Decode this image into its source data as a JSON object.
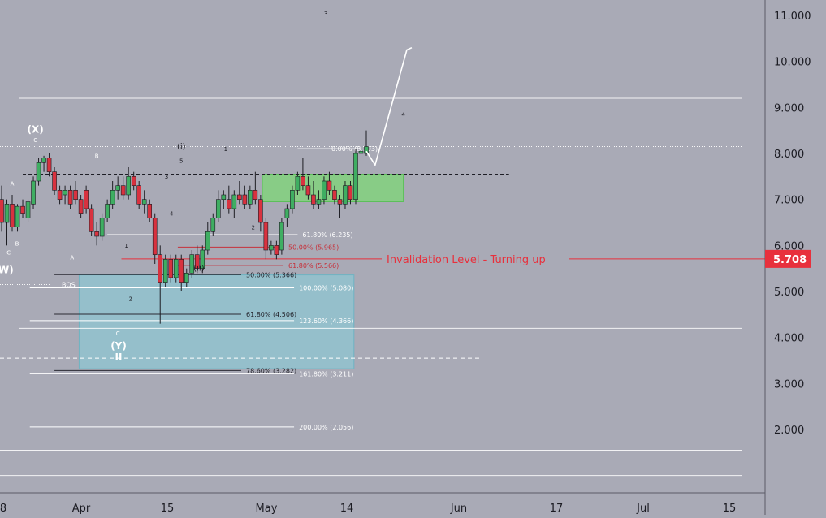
{
  "colors": {
    "background": "#a9aab6",
    "up_candle": "#3fae62",
    "down_candle": "#d8323f",
    "invalidation": "#e8303c",
    "demand_zone": "#7fd47a",
    "fib_box": "#8fc6d2",
    "axis_text": "#1b1b22",
    "label_white": "#f4f4f8"
  },
  "chart_data": {
    "type": "candlestick",
    "title": "",
    "xlabel": "",
    "ylabel": "",
    "ylim": [
      1.0,
      11.4
    ],
    "grid": false,
    "y_ticks": [
      "2.000",
      "3.000",
      "4.000",
      "5.000",
      "6.000",
      "7.000",
      "8.000",
      "9.000",
      "10.000",
      "11.000"
    ],
    "x_ticks": [
      {
        "label": "8",
        "x": 0
      },
      {
        "label": "Apr",
        "x": 8
      },
      {
        "label": "15",
        "x": 16
      },
      {
        "label": "May",
        "x": 24.5
      },
      {
        "label": "14",
        "x": 32
      },
      {
        "label": "Jun",
        "x": 42
      },
      {
        "label": "17",
        "x": 51
      },
      {
        "label": "Jul",
        "x": 60
      },
      {
        "label": "15",
        "x": 68
      }
    ],
    "price_label": {
      "text": "5.708",
      "value": 5.708
    },
    "invalidation": {
      "text": "Invalidation Level - Turning up",
      "value": 5.708,
      "x_start": 17,
      "x_end": 70
    },
    "candles": [
      {
        "t": 0,
        "o": 7.0,
        "h": 7.3,
        "l": 6.3,
        "c": 6.5
      },
      {
        "t": 0.75,
        "o": 6.5,
        "h": 7.0,
        "l": 6.0,
        "c": 6.9
      },
      {
        "t": 1.5,
        "o": 6.9,
        "h": 7.1,
        "l": 6.3,
        "c": 6.4
      },
      {
        "t": 2.25,
        "o": 6.4,
        "h": 6.9,
        "l": 6.3,
        "c": 6.85
      },
      {
        "t": 3,
        "o": 6.85,
        "h": 7.0,
        "l": 6.6,
        "c": 6.7
      },
      {
        "t": 3.75,
        "o": 6.6,
        "h": 7.0,
        "l": 6.5,
        "c": 6.95
      },
      {
        "t": 4.5,
        "o": 6.9,
        "h": 7.5,
        "l": 6.8,
        "c": 7.4
      },
      {
        "t": 5.25,
        "o": 7.4,
        "h": 7.9,
        "l": 7.3,
        "c": 7.8
      },
      {
        "t": 6,
        "o": 7.8,
        "h": 7.95,
        "l": 7.6,
        "c": 7.9
      },
      {
        "t": 6.75,
        "o": 7.9,
        "h": 8.0,
        "l": 7.5,
        "c": 7.6
      },
      {
        "t": 7.5,
        "o": 7.6,
        "h": 7.7,
        "l": 7.1,
        "c": 7.2
      },
      {
        "t": 8.25,
        "o": 7.2,
        "h": 7.3,
        "l": 6.9,
        "c": 7.0
      },
      {
        "t": 9,
        "o": 7.1,
        "h": 7.3,
        "l": 6.9,
        "c": 7.2
      },
      {
        "t": 9.75,
        "o": 7.2,
        "h": 7.3,
        "l": 6.8,
        "c": 6.9
      },
      {
        "t": 10.5,
        "o": 7.2,
        "h": 7.4,
        "l": 6.9,
        "c": 7.0
      },
      {
        "t": 11.25,
        "o": 7.0,
        "h": 7.1,
        "l": 6.6,
        "c": 6.7
      },
      {
        "t": 12,
        "o": 7.2,
        "h": 7.3,
        "l": 6.7,
        "c": 6.8
      },
      {
        "t": 12.75,
        "o": 6.8,
        "h": 6.9,
        "l": 6.2,
        "c": 6.3
      },
      {
        "t": 13.5,
        "o": 6.3,
        "h": 6.5,
        "l": 6.0,
        "c": 6.2
      },
      {
        "t": 14.25,
        "o": 6.2,
        "h": 6.7,
        "l": 6.1,
        "c": 6.6
      },
      {
        "t": 15,
        "o": 6.6,
        "h": 7.0,
        "l": 6.5,
        "c": 6.9
      },
      {
        "t": 15.75,
        "o": 6.9,
        "h": 7.4,
        "l": 6.8,
        "c": 7.2
      },
      {
        "t": 16.5,
        "o": 7.2,
        "h": 7.5,
        "l": 7.0,
        "c": 7.3
      },
      {
        "t": 17.25,
        "o": 7.3,
        "h": 7.5,
        "l": 7.0,
        "c": 7.1
      },
      {
        "t": 18,
        "o": 7.1,
        "h": 7.7,
        "l": 7.0,
        "c": 7.5
      },
      {
        "t": 18.75,
        "o": 7.5,
        "h": 7.6,
        "l": 7.2,
        "c": 7.3
      },
      {
        "t": 19.5,
        "o": 7.3,
        "h": 7.4,
        "l": 6.8,
        "c": 6.9
      },
      {
        "t": 20.25,
        "o": 6.9,
        "h": 7.2,
        "l": 6.7,
        "c": 7.0
      },
      {
        "t": 21,
        "o": 6.9,
        "h": 7.0,
        "l": 6.5,
        "c": 6.6
      },
      {
        "t": 21.75,
        "o": 6.6,
        "h": 6.7,
        "l": 5.6,
        "c": 5.8
      },
      {
        "t": 22.5,
        "o": 5.8,
        "h": 6.0,
        "l": 4.3,
        "c": 5.2
      },
      {
        "t": 23.25,
        "o": 5.2,
        "h": 5.8,
        "l": 5.1,
        "c": 5.7
      },
      {
        "t": 24,
        "o": 5.7,
        "h": 5.8,
        "l": 5.2,
        "c": 5.3
      },
      {
        "t": 24.75,
        "o": 5.3,
        "h": 5.8,
        "l": 5.2,
        "c": 5.7
      },
      {
        "t": 25.5,
        "o": 5.7,
        "h": 5.8,
        "l": 5.0,
        "c": 5.2
      },
      {
        "t": 26.25,
        "o": 5.2,
        "h": 5.5,
        "l": 5.1,
        "c": 5.4
      },
      {
        "t": 27,
        "o": 5.4,
        "h": 5.9,
        "l": 5.3,
        "c": 5.8
      },
      {
        "t": 27.75,
        "o": 5.8,
        "h": 6.0,
        "l": 5.4,
        "c": 5.5
      },
      {
        "t": 28.5,
        "o": 5.5,
        "h": 6.0,
        "l": 5.4,
        "c": 5.9
      },
      {
        "t": 29.25,
        "o": 5.9,
        "h": 6.5,
        "l": 5.8,
        "c": 6.3
      },
      {
        "t": 30,
        "o": 6.3,
        "h": 6.7,
        "l": 6.2,
        "c": 6.6
      },
      {
        "t": 30.75,
        "o": 6.6,
        "h": 7.2,
        "l": 6.5,
        "c": 7.0
      },
      {
        "t": 31.5,
        "o": 7.0,
        "h": 7.2,
        "l": 6.8,
        "c": 7.1
      },
      {
        "t": 32.25,
        "o": 7.0,
        "h": 7.3,
        "l": 6.7,
        "c": 6.8
      },
      {
        "t": 33,
        "o": 6.8,
        "h": 7.2,
        "l": 6.6,
        "c": 7.1
      },
      {
        "t": 33.75,
        "o": 7.1,
        "h": 7.4,
        "l": 6.9,
        "c": 7.0
      },
      {
        "t": 34.5,
        "o": 7.1,
        "h": 7.3,
        "l": 6.8,
        "c": 6.9
      },
      {
        "t": 35.25,
        "o": 6.9,
        "h": 7.3,
        "l": 6.8,
        "c": 7.2
      },
      {
        "t": 36,
        "o": 7.2,
        "h": 7.6,
        "l": 6.9,
        "c": 7.0
      },
      {
        "t": 36.75,
        "o": 7.0,
        "h": 7.1,
        "l": 6.3,
        "c": 6.5
      },
      {
        "t": 37.5,
        "o": 6.5,
        "h": 6.6,
        "l": 5.7,
        "c": 5.9
      },
      {
        "t": 38.25,
        "o": 5.9,
        "h": 6.1,
        "l": 5.8,
        "c": 6.0
      },
      {
        "t": 39,
        "o": 6.0,
        "h": 6.1,
        "l": 5.7,
        "c": 5.8
      },
      {
        "t": 39.75,
        "o": 5.9,
        "h": 6.6,
        "l": 5.8,
        "c": 6.5
      },
      {
        "t": 40.5,
        "o": 6.6,
        "h": 6.9,
        "l": 6.4,
        "c": 6.8
      },
      {
        "t": 41.25,
        "o": 6.8,
        "h": 7.3,
        "l": 6.7,
        "c": 7.2
      },
      {
        "t": 42,
        "o": 7.2,
        "h": 7.6,
        "l": 7.1,
        "c": 7.5
      },
      {
        "t": 42.75,
        "o": 7.5,
        "h": 7.9,
        "l": 7.2,
        "c": 7.3
      },
      {
        "t": 43.5,
        "o": 7.3,
        "h": 7.5,
        "l": 7.0,
        "c": 7.1
      },
      {
        "t": 44.25,
        "o": 7.1,
        "h": 7.4,
        "l": 6.8,
        "c": 6.9
      },
      {
        "t": 45,
        "o": 6.9,
        "h": 7.2,
        "l": 6.8,
        "c": 7.0
      },
      {
        "t": 45.75,
        "o": 7.0,
        "h": 7.5,
        "l": 6.9,
        "c": 7.4
      },
      {
        "t": 46.5,
        "o": 7.4,
        "h": 7.6,
        "l": 7.1,
        "c": 7.2
      },
      {
        "t": 47.25,
        "o": 7.2,
        "h": 7.3,
        "l": 6.9,
        "c": 7.0
      },
      {
        "t": 48,
        "o": 7.0,
        "h": 7.1,
        "l": 6.6,
        "c": 6.9
      },
      {
        "t": 48.75,
        "o": 6.9,
        "h": 7.4,
        "l": 6.8,
        "c": 7.3
      },
      {
        "t": 49.5,
        "o": 7.3,
        "h": 7.4,
        "l": 6.9,
        "c": 7.0
      },
      {
        "t": 50.25,
        "o": 7.0,
        "h": 8.1,
        "l": 6.9,
        "c": 8.0
      },
      {
        "t": 51,
        "o": 8.0,
        "h": 8.3,
        "l": 7.9,
        "c": 8.05
      },
      {
        "t": 51.75,
        "o": 8.0,
        "h": 8.5,
        "l": 7.95,
        "c": 8.15
      }
    ],
    "candle_x_scale": {
      "t0": 0,
      "t1": 51.75
    },
    "demand_zone": {
      "x_from": 37,
      "x_to": 57,
      "y_from": 6.95,
      "y_to": 7.55
    },
    "fib_box": {
      "x_from": 11,
      "x_to": 50,
      "y_from": 3.32,
      "y_to": 5.36
    },
    "projection": [
      {
        "t": 51.75,
        "v": 8.05
      },
      {
        "t": 53,
        "v": 7.75
      },
      {
        "t": 57.5,
        "v": 10.25
      },
      {
        "t": 58.2,
        "v": 10.3
      }
    ],
    "fib_levels": [
      {
        "text": "0.00% (8.103)",
        "value": 8.103,
        "x_from": 42,
        "x_to": 51,
        "color": "white"
      },
      {
        "text": "61.80% (6.235)",
        "value": 6.235,
        "x_from": 15,
        "x_to": 42,
        "color": "white"
      },
      {
        "text": "50.00% (5.965)",
        "value": 5.965,
        "x_from": 25,
        "x_to": 40,
        "color": "red"
      },
      {
        "text": "61.80% (5.566)",
        "value": 5.566,
        "x_from": 25,
        "x_to": 40,
        "color": "red"
      },
      {
        "text": "50.00% (5.366)",
        "value": 5.366,
        "x_from": 7.5,
        "x_to": 34,
        "color": "dark"
      },
      {
        "text": "100.00% (5.080)",
        "value": 5.08,
        "x_from": 4,
        "x_to": 41.5,
        "color": "white"
      },
      {
        "text": "61.80% (4.506)",
        "value": 4.506,
        "x_from": 7.5,
        "x_to": 34,
        "color": "dark"
      },
      {
        "text": "123.60% (4.366)",
        "value": 4.366,
        "x_from": 4,
        "x_to": 41.5,
        "color": "white"
      },
      {
        "text": "78.60% (3.282)",
        "value": 3.282,
        "x_from": 7.5,
        "x_to": 34,
        "color": "dark"
      },
      {
        "text": "161.80% (3.211)",
        "value": 3.211,
        "x_from": 4,
        "x_to": 41.5,
        "color": "white"
      },
      {
        "text": "200.00% (2.056)",
        "value": 2.056,
        "x_from": 4,
        "x_to": 41.5,
        "color": "white"
      }
    ],
    "horizontal_lines": [
      {
        "value": 9.2,
        "style": "solid",
        "x_from": 2.5,
        "x_to": 105
      },
      {
        "value": 4.2,
        "style": "solid",
        "x_from": 2.5,
        "x_to": 105
      },
      {
        "value": 1.55,
        "style": "solid",
        "x_from": -5,
        "x_to": 105
      },
      {
        "value": 1.0,
        "style": "solid",
        "x_from": -5,
        "x_to": 105
      },
      {
        "value": 8.15,
        "style": "dotted",
        "x_from": -5,
        "x_to": 105
      },
      {
        "value": 5.15,
        "style": "dotted",
        "x_from": -5,
        "x_to": 7
      },
      {
        "value": 7.55,
        "style": "dashed_dark",
        "x_from": 3,
        "x_to": 72
      },
      {
        "value": 3.55,
        "style": "dashed_light",
        "x_from": -5,
        "x_to": 68
      }
    ],
    "bos": {
      "text": "BOS",
      "value": 5.15
    },
    "annotations": [
      {
        "text": "(X)",
        "t": 4.8,
        "v": 8.45,
        "size": "big"
      },
      {
        "text": "C",
        "t": 4.8,
        "v": 8.25,
        "size": "small"
      },
      {
        "text": "A",
        "t": 1.5,
        "v": 7.3,
        "size": "small"
      },
      {
        "text": "B",
        "t": 2.2,
        "v": 6.0,
        "size": "small"
      },
      {
        "text": "C",
        "t": 1.0,
        "v": 5.8,
        "size": "small"
      },
      {
        "text": "(W)",
        "t": 0.3,
        "v": 5.4,
        "size": "big"
      },
      {
        "text": "B",
        "t": 13.5,
        "v": 7.9,
        "size": "small"
      },
      {
        "text": "A",
        "t": 10.0,
        "v": 5.7,
        "size": "small"
      },
      {
        "text": "1",
        "t": 17.7,
        "v": 5.95,
        "size": "small"
      },
      {
        "text": "2",
        "t": 18.3,
        "v": 4.8,
        "size": "small"
      },
      {
        "text": "C",
        "t": 16.5,
        "v": 4.05,
        "size": "small"
      },
      {
        "text": "(Y)",
        "t": 16.6,
        "v": 3.75,
        "size": "big"
      },
      {
        "text": "II",
        "t": 16.6,
        "v": 3.5,
        "size": "big"
      },
      {
        "text": "(i)",
        "t": 25.5,
        "v": 8.1,
        "size": "medium"
      },
      {
        "text": "5",
        "t": 25.5,
        "v": 7.8,
        "size": "small"
      },
      {
        "text": "3",
        "t": 23.4,
        "v": 7.45,
        "size": "small"
      },
      {
        "text": "4",
        "t": 24.1,
        "v": 6.65,
        "size": "small"
      },
      {
        "text": "(ii)",
        "t": 28.0,
        "v": 5.45,
        "size": "medium"
      },
      {
        "text": "1",
        "t": 31.8,
        "v": 8.05,
        "size": "small"
      },
      {
        "text": "2",
        "t": 35.7,
        "v": 6.35,
        "size": "small"
      },
      {
        "text": "3",
        "t": 46.0,
        "v": 11.0,
        "size": "small"
      },
      {
        "text": "4",
        "t": 57.0,
        "v": 8.8,
        "size": "small"
      }
    ]
  }
}
